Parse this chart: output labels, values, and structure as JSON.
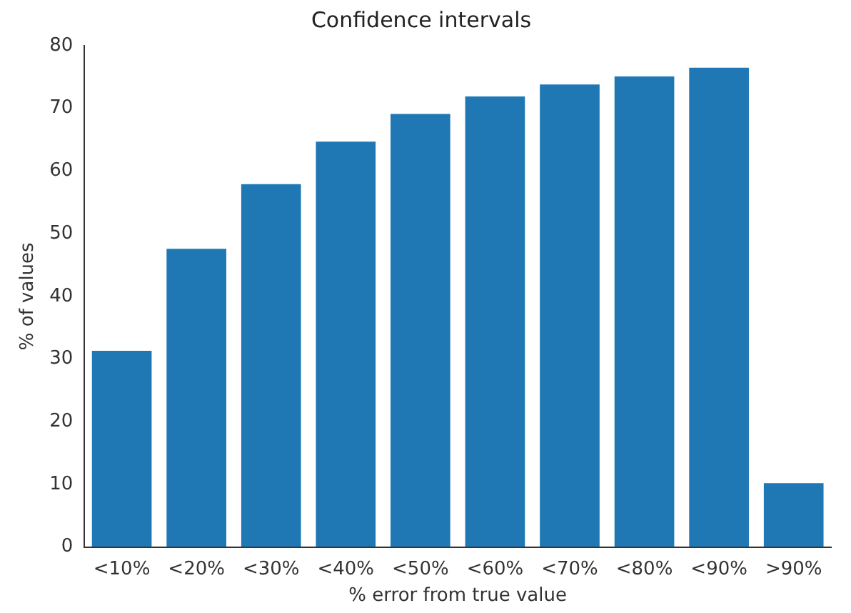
{
  "chart_data": {
    "type": "bar",
    "title": "Confidence intervals",
    "xlabel": "% error from true value",
    "ylabel": "% of values",
    "categories": [
      "<10%",
      "<20%",
      "<30%",
      "<40%",
      "<50%",
      "<60%",
      "<70%",
      "<80%",
      "<90%",
      ">90%"
    ],
    "values": [
      31.3,
      47.6,
      57.9,
      64.7,
      69.1,
      71.9,
      73.8,
      75.1,
      76.5,
      10.2
    ],
    "color": "#1f77b4",
    "ylim": [
      0,
      80
    ],
    "yticks": [
      0,
      10,
      20,
      30,
      40,
      50,
      60,
      70,
      80
    ],
    "grid": false
  }
}
